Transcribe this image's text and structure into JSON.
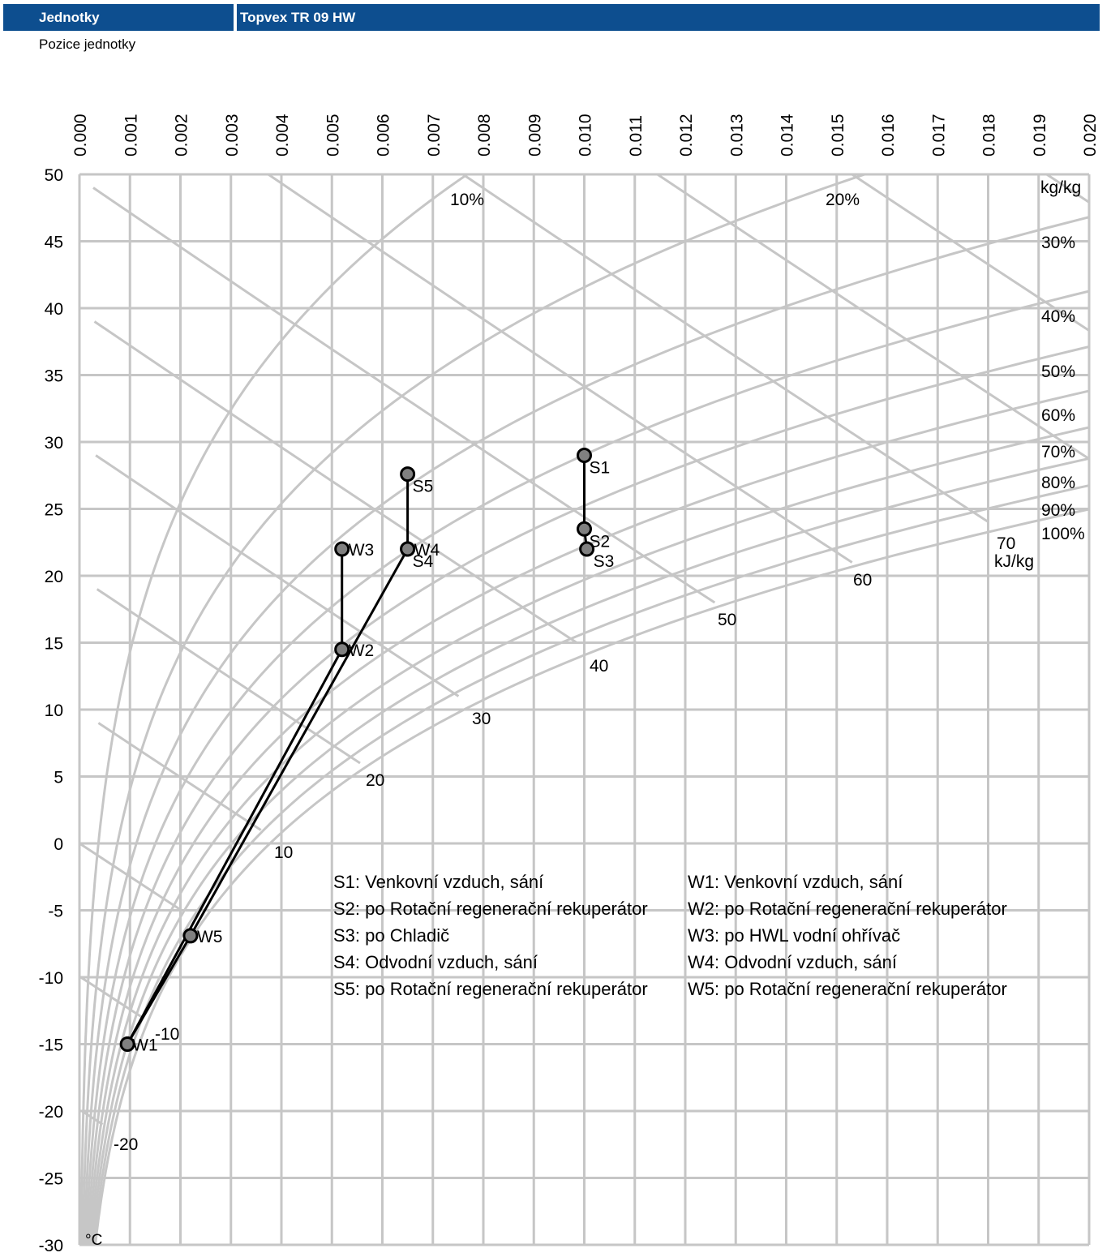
{
  "header": {
    "left_label": "Jednotky",
    "right_label": "Topvex TR 09 HW"
  },
  "subheader": {
    "label": "Pozice jednotky"
  },
  "chart_data": {
    "type": "scatter",
    "title": "",
    "x_unit": "kg/kg",
    "y_unit": "°C",
    "xlim": [
      0.0,
      0.02
    ],
    "ylim": [
      -30,
      50
    ],
    "grid": true,
    "x_ticks": [
      "0.000",
      "0.001",
      "0.002",
      "0.003",
      "0.004",
      "0.005",
      "0.006",
      "0.007",
      "0.008",
      "0.009",
      "0.010",
      "0.011",
      "0.012",
      "0.013",
      "0.014",
      "0.015",
      "0.016",
      "0.017",
      "0.018",
      "0.019",
      "0.020"
    ],
    "y_ticks": [
      "50",
      "45",
      "40",
      "35",
      "30",
      "25",
      "20",
      "15",
      "10",
      "5",
      "0",
      "-5",
      "-10",
      "-15",
      "-20",
      "-25",
      "-30"
    ],
    "rh_labels": [
      "10%",
      "20%",
      "30%",
      "40%",
      "50%",
      "60%",
      "70%",
      "80%",
      "90%",
      "100%"
    ],
    "enthalpy_labels": [
      "-20",
      "-10",
      "10",
      "20",
      "30",
      "40",
      "50",
      "60",
      "70"
    ],
    "enthalpy_unit": "kJ/kg",
    "points": [
      {
        "label": "S1",
        "x": 0.01,
        "y": 29.0
      },
      {
        "label": "S2",
        "x": 0.01,
        "y": 23.5
      },
      {
        "label": "S3",
        "x": 0.01005,
        "y": 22.0
      },
      {
        "label": "S4",
        "x": 0.0065,
        "y": 22.0
      },
      {
        "label": "S5",
        "x": 0.0065,
        "y": 27.6
      },
      {
        "label": "W1",
        "x": 0.00095,
        "y": -15.0
      },
      {
        "label": "W2",
        "x": 0.0052,
        "y": 14.5
      },
      {
        "label": "W3",
        "x": 0.0052,
        "y": 22.0
      },
      {
        "label": "W4",
        "x": 0.0065,
        "y": 22.0
      },
      {
        "label": "W5",
        "x": 0.0022,
        "y": -6.9
      }
    ],
    "legend": [
      "S1: Venkovní vzduch, sání",
      "S2: po Rotační regenerační rekuperátor",
      "S3: po Chladič",
      "S4: Odvodní vzduch, sání",
      "S5: po Rotační regenerační rekuperátor",
      "W1: Venkovní vzduch, sání",
      "W2: po Rotační regenerační rekuperátor",
      "W3: po HWL vodní ohřívač",
      "W4: Odvodní vzduch, sání",
      "W5: po Rotační regenerační rekuperátor"
    ]
  }
}
